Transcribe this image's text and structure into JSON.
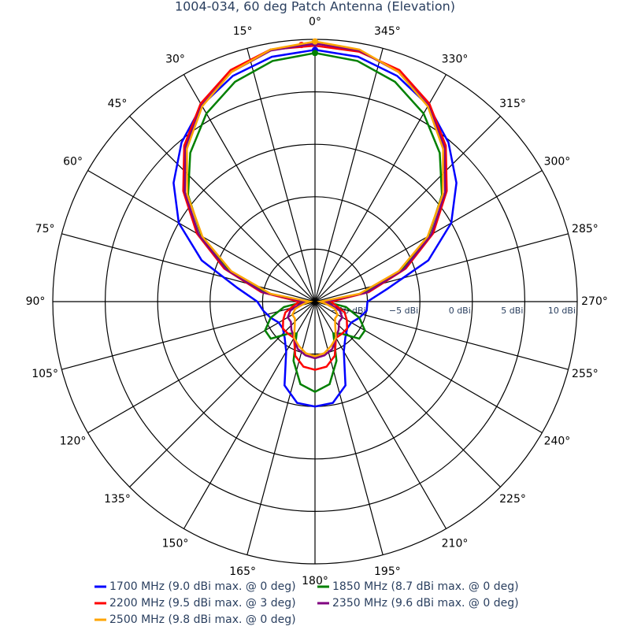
{
  "chart_data": {
    "type": "polar",
    "title": "1004-034, 60 deg Patch Antenna (Elevation)",
    "theta": [
      0,
      10,
      20,
      30,
      40,
      50,
      60,
      70,
      80,
      90,
      100,
      110,
      120,
      130,
      140,
      150,
      160,
      170,
      180,
      190,
      200,
      210,
      220,
      230,
      240,
      250,
      260,
      270,
      280,
      290,
      300,
      310,
      320,
      330,
      340,
      350
    ],
    "rlim": [
      -15,
      10
    ],
    "rticks": [
      {
        "value": -10,
        "label": "−10 dBi"
      },
      {
        "value": -5,
        "label": "−5 dBi"
      },
      {
        "value": 0,
        "label": "0 dBi"
      },
      {
        "value": 5,
        "label": "5 dBi"
      },
      {
        "value": 10,
        "label": "10 dBi"
      }
    ],
    "angular_ticks": [
      {
        "value": 0,
        "label": "0°"
      },
      {
        "value": 15,
        "label": "15°"
      },
      {
        "value": 30,
        "label": "30°"
      },
      {
        "value": 45,
        "label": "45°"
      },
      {
        "value": 60,
        "label": "60°"
      },
      {
        "value": 75,
        "label": "75°"
      },
      {
        "value": 90,
        "label": "90°"
      },
      {
        "value": 105,
        "label": "105°"
      },
      {
        "value": 120,
        "label": "120°"
      },
      {
        "value": 135,
        "label": "135°"
      },
      {
        "value": 150,
        "label": "150°"
      },
      {
        "value": 165,
        "label": "165°"
      },
      {
        "value": 180,
        "label": "180°"
      },
      {
        "value": 195,
        "label": "195°"
      },
      {
        "value": 210,
        "label": "210°"
      },
      {
        "value": 225,
        "label": "225°"
      },
      {
        "value": 240,
        "label": "240°"
      },
      {
        "value": 255,
        "label": "255°"
      },
      {
        "value": 270,
        "label": "270°"
      },
      {
        "value": 285,
        "label": "285°"
      },
      {
        "value": 300,
        "label": "300°"
      },
      {
        "value": 315,
        "label": "315°"
      },
      {
        "value": 330,
        "label": "330°"
      },
      {
        "value": 345,
        "label": "345°"
      }
    ],
    "series": [
      {
        "name": "1700 MHz (9.0 dBi max. @ 0 deg)",
        "color": "#0000ff",
        "marker": {
          "theta": 0,
          "r": 9.0
        },
        "values": [
          9.0,
          8.7,
          7.9,
          6.6,
          4.8,
          2.6,
          0,
          -3.5,
          -7.5,
          -9.5,
          -10,
          -10.5,
          -11,
          -11,
          -10.5,
          -9.5,
          -6.5,
          -5.2,
          -5,
          -5.2,
          -6.5,
          -9.5,
          -10.5,
          -11,
          -11,
          -10.5,
          -10,
          -10,
          -8,
          -3.5,
          0,
          2.6,
          4.8,
          6.6,
          7.9,
          8.7
        ]
      },
      {
        "name": "1850 MHz (8.7 dBi max. @ 0 deg)",
        "color": "#008000",
        "marker": {
          "theta": 0,
          "r": 8.7
        },
        "values": [
          8.7,
          8.3,
          7.3,
          5.7,
          3.5,
          0.8,
          -2.5,
          -6.2,
          -10.5,
          -14,
          -12,
          -10.5,
          -9.5,
          -9.5,
          -11,
          -11.5,
          -9,
          -7,
          -6.4,
          -7,
          -9,
          -11.5,
          -11,
          -9.5,
          -9.5,
          -10.5,
          -12,
          -14,
          -10.5,
          -6.2,
          -2.5,
          0.8,
          3.5,
          5.7,
          7.3,
          8.3
        ]
      },
      {
        "name": "2200 MHz (9.5 dBi max. @ 3 deg)",
        "color": "#ff0000",
        "marker": {
          "theta": 3,
          "r": 9.5
        },
        "values": [
          9.4,
          9.4,
          8.5,
          6.8,
          4.4,
          1.4,
          -2,
          -5.8,
          -9.8,
          -13.5,
          -13,
          -12,
          -11.5,
          -11,
          -11,
          -11,
          -9.5,
          -8.7,
          -8.5,
          -8.7,
          -9.5,
          -11,
          -11,
          -11,
          -11.5,
          -12,
          -13,
          -13.5,
          -9.8,
          -5.8,
          -2,
          1.4,
          4.4,
          6.8,
          8.5,
          9.2
        ]
      },
      {
        "name": "2350 MHz (9.6 dBi max. @ 0 deg)",
        "color": "#800080",
        "marker": {
          "theta": 0,
          "r": 9.6
        },
        "values": [
          9.6,
          9.3,
          8.3,
          6.6,
          4.2,
          1.2,
          -2.2,
          -6,
          -10,
          -14,
          -13.5,
          -12.5,
          -12,
          -12,
          -11.5,
          -11,
          -10.2,
          -9.8,
          -9.6,
          -9.8,
          -10.2,
          -11,
          -11.5,
          -12,
          -12,
          -12.5,
          -13.5,
          -14,
          -10,
          -6,
          -2.2,
          1.2,
          4.2,
          6.6,
          8.3,
          9.3
        ]
      },
      {
        "name": "2500 MHz (9.8 dBi max. @ 0 deg)",
        "color": "#ffa500",
        "marker": {
          "theta": 0,
          "r": 9.8
        },
        "values": [
          9.8,
          9.4,
          8.3,
          6.5,
          4.0,
          0.9,
          -2.6,
          -6.5,
          -10.7,
          -14.5,
          -14,
          -13,
          -12.5,
          -12.5,
          -12,
          -11,
          -10.5,
          -10,
          -9.8,
          -10,
          -10.5,
          -11,
          -12,
          -12.5,
          -12.5,
          -13,
          -14,
          -14.5,
          -10.7,
          -6.5,
          -2.6,
          0.9,
          4.0,
          6.5,
          8.3,
          9.4
        ]
      }
    ]
  }
}
